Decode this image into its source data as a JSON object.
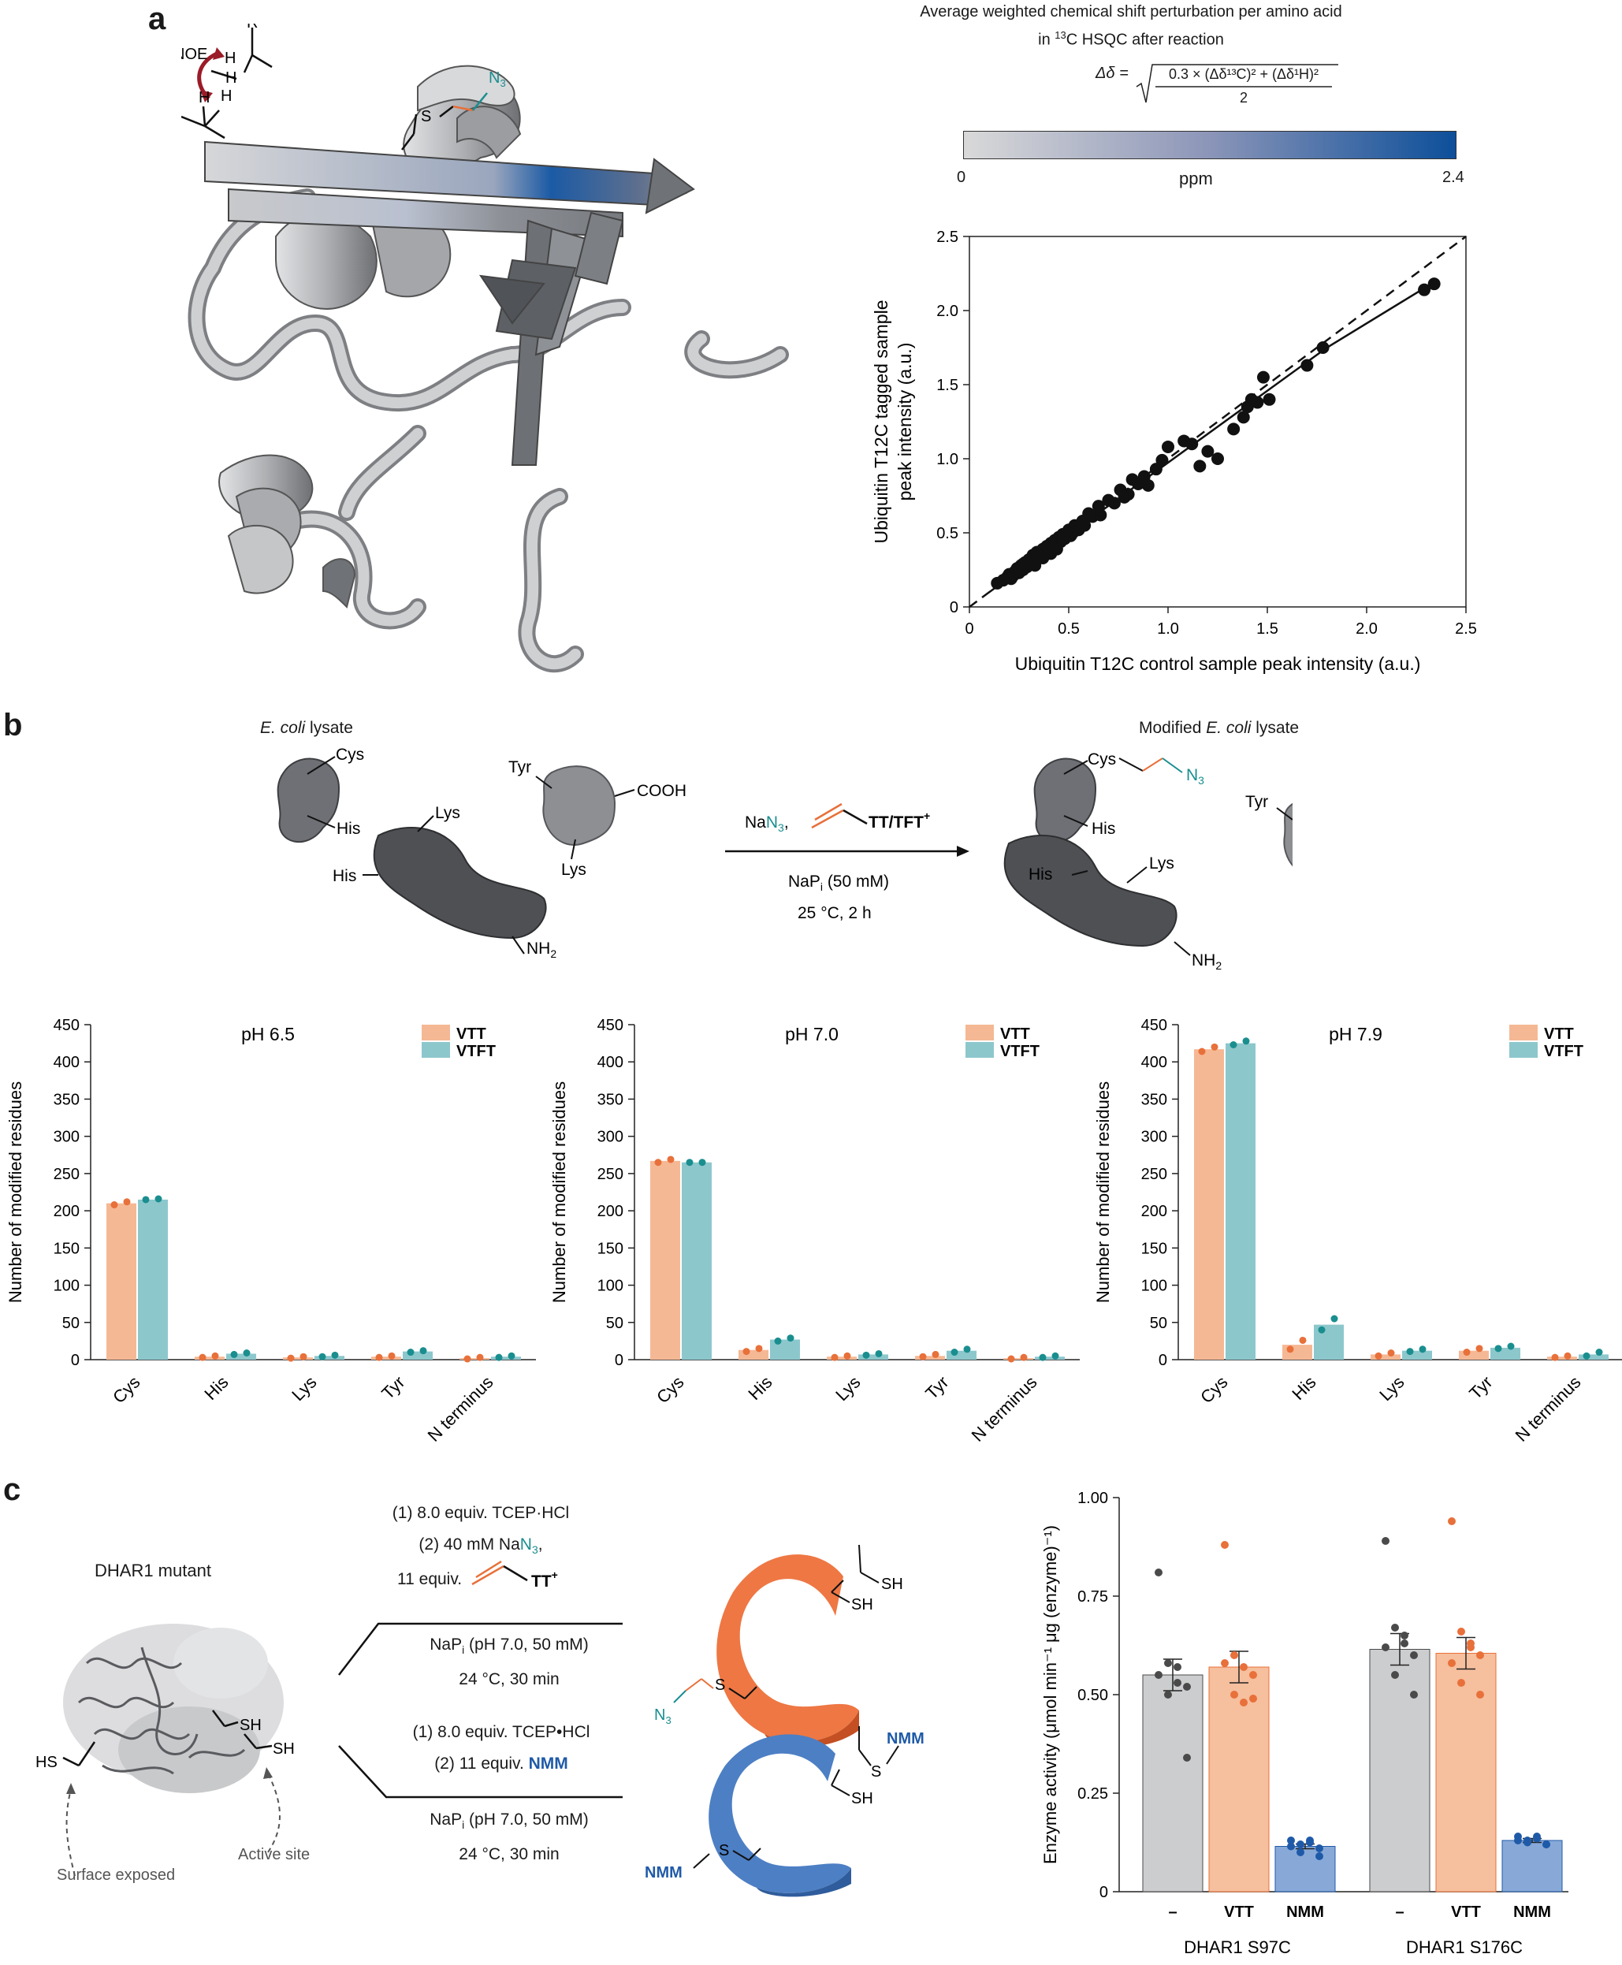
{
  "panels": {
    "a": "a",
    "b": "b",
    "c": "c"
  },
  "colors": {
    "vtt": "#f5b894",
    "vtt_dot": "#e8703a",
    "vtft": "#8cc7cc",
    "vtft_dot": "#1a8e8f",
    "ctrl_bar": "#c7c8ca",
    "ctrl_dot": "#4a4a4a",
    "nmm_bar": "#7ba0d4",
    "nmm_dot": "#1f5aa8",
    "orange_protein": "#ee7744",
    "blue_protein": "#4d7fc4",
    "scale_start": "#d9d9d9",
    "scale_end": "#0d4f9a"
  },
  "panel_a": {
    "noe_label": "NOE",
    "h_label": "H",
    "r_label": "R",
    "s_label": "S",
    "n3_label": "N",
    "n3_sub": "3",
    "colorbar": {
      "title_line1": "Average weighted chemical shift perturbation per amino acid",
      "title_line2_pre": "in ",
      "title_line2_sup": "13",
      "title_line2_post": "C HSQC after reaction",
      "formula_lhs": "Δδ =",
      "formula_numerator": "0.3 × (Δδ¹³C)² + (Δδ¹H)²",
      "formula_denominator": "2",
      "min_label": "0",
      "unit_label": "ppm",
      "max_label": "2.4"
    }
  },
  "scatter": {
    "type": "scatter",
    "xlabel": "Ubiquitin T12C control sample peak intensity (a.u.)",
    "ylabel_line1": "Ubiquitin T12C tagged sample",
    "ylabel_line2": "peak intensity (a.u.)",
    "xlim": [
      0,
      2.5
    ],
    "ylim": [
      0,
      2.5
    ],
    "xticks": [
      "0",
      "0.5",
      "1.0",
      "1.5",
      "2.0",
      "2.5"
    ],
    "yticks": [
      "0",
      "0.5",
      "1.0",
      "1.5",
      "2.0",
      "2.5"
    ],
    "points": [
      [
        0.14,
        0.16
      ],
      [
        0.17,
        0.18
      ],
      [
        0.19,
        0.2
      ],
      [
        0.2,
        0.22
      ],
      [
        0.22,
        0.21
      ],
      [
        0.23,
        0.24
      ],
      [
        0.24,
        0.26
      ],
      [
        0.25,
        0.23
      ],
      [
        0.26,
        0.28
      ],
      [
        0.27,
        0.25
      ],
      [
        0.28,
        0.3
      ],
      [
        0.29,
        0.27
      ],
      [
        0.3,
        0.32
      ],
      [
        0.31,
        0.3
      ],
      [
        0.32,
        0.35
      ],
      [
        0.33,
        0.31
      ],
      [
        0.34,
        0.37
      ],
      [
        0.35,
        0.33
      ],
      [
        0.36,
        0.36
      ],
      [
        0.37,
        0.39
      ],
      [
        0.38,
        0.35
      ],
      [
        0.39,
        0.41
      ],
      [
        0.4,
        0.38
      ],
      [
        0.41,
        0.43
      ],
      [
        0.42,
        0.4
      ],
      [
        0.43,
        0.45
      ],
      [
        0.44,
        0.42
      ],
      [
        0.45,
        0.47
      ],
      [
        0.46,
        0.44
      ],
      [
        0.47,
        0.49
      ],
      [
        0.48,
        0.46
      ],
      [
        0.5,
        0.52
      ],
      [
        0.51,
        0.48
      ],
      [
        0.53,
        0.55
      ],
      [
        0.55,
        0.52
      ],
      [
        0.57,
        0.58
      ],
      [
        0.6,
        0.63
      ],
      [
        0.62,
        0.61
      ],
      [
        0.65,
        0.68
      ],
      [
        0.7,
        0.72
      ],
      [
        0.73,
        0.7
      ],
      [
        0.76,
        0.79
      ],
      [
        0.8,
        0.76
      ],
      [
        0.82,
        0.86
      ],
      [
        0.85,
        0.83
      ],
      [
        0.88,
        0.88
      ],
      [
        0.9,
        0.82
      ],
      [
        0.94,
        0.93
      ],
      [
        0.97,
        0.99
      ],
      [
        1.0,
        1.08
      ],
      [
        1.08,
        1.12
      ],
      [
        1.12,
        1.1
      ],
      [
        1.16,
        0.95
      ],
      [
        1.2,
        1.05
      ],
      [
        1.25,
        1.0
      ],
      [
        1.33,
        1.2
      ],
      [
        1.38,
        1.28
      ],
      [
        1.4,
        1.35
      ],
      [
        1.42,
        1.4
      ],
      [
        1.45,
        1.38
      ],
      [
        1.48,
        1.55
      ],
      [
        1.51,
        1.4
      ],
      [
        1.7,
        1.63
      ],
      [
        1.78,
        1.75
      ],
      [
        2.29,
        2.14
      ],
      [
        2.34,
        2.18
      ],
      [
        0.21,
        0.19
      ],
      [
        0.27,
        0.29
      ],
      [
        0.33,
        0.28
      ],
      [
        0.37,
        0.33
      ],
      [
        0.41,
        0.36
      ],
      [
        0.44,
        0.39
      ],
      [
        0.52,
        0.5
      ],
      [
        0.58,
        0.55
      ],
      [
        0.66,
        0.62
      ],
      [
        0.78,
        0.74
      ]
    ],
    "fit_line": [
      [
        0.1,
        0.1
      ],
      [
        1.8,
        1.75
      ],
      [
        2.35,
        2.2
      ]
    ],
    "identity_line": [
      [
        0,
        0
      ],
      [
        2.5,
        2.5
      ]
    ]
  },
  "panel_b": {
    "left_title_italic": "E. coli",
    "left_title_rest": " lysate",
    "right_title_pre": "Modified ",
    "right_title_italic": "E. coli",
    "right_title_rest": " lysate",
    "labels": {
      "cys": "Cys",
      "his": "His",
      "tyr": "Tyr",
      "lys": "Lys",
      "cooh": "COOH",
      "nh": "NH",
      "nh_sub": "2",
      "n3": "N",
      "n3_sub": "3"
    },
    "reagent": {
      "na": "Na",
      "n3": "N",
      "n3_sub": "3",
      "comma": ",",
      "tt": "TT/TFT",
      "tt_sup": "+"
    },
    "cond_line1_pre": "NaP",
    "cond_line1_sub": "i",
    "cond_line1_post": " (50 mM)",
    "cond_line2": "25 °C, 2 h"
  },
  "bar_charts": {
    "type": "bar",
    "ylabel": "Number of modified residues",
    "yticks": [
      "0",
      "50",
      "100",
      "150",
      "200",
      "250",
      "300",
      "350",
      "400",
      "450"
    ],
    "ylim": [
      0,
      450
    ],
    "categories": [
      "Cys",
      "His",
      "Lys",
      "Tyr",
      "N terminus"
    ],
    "legend": [
      "VTT",
      "VTFT"
    ],
    "charts": [
      {
        "title": "pH 6.5",
        "series": [
          {
            "name": "VTT",
            "values": [
              210,
              4,
              3,
              4,
              2
            ],
            "points": [
              [
                208,
                212
              ],
              [
                3,
                5
              ],
              [
                2,
                4
              ],
              [
                3,
                5
              ],
              [
                1,
                3
              ]
            ]
          },
          {
            "name": "VTFT",
            "values": [
              215,
              8,
              5,
              11,
              4
            ],
            "points": [
              [
                215,
                216
              ],
              [
                7,
                9
              ],
              [
                4,
                6
              ],
              [
                10,
                12
              ],
              [
                3,
                5
              ]
            ]
          }
        ]
      },
      {
        "title": "pH 7.0",
        "series": [
          {
            "name": "VTT",
            "values": [
              267,
              13,
              4,
              5,
              2
            ],
            "points": [
              [
                265,
                269
              ],
              [
                11,
                15
              ],
              [
                3,
                5
              ],
              [
                4,
                7
              ],
              [
                1,
                3
              ]
            ]
          },
          {
            "name": "VTFT",
            "values": [
              265,
              27,
              7,
              12,
              4
            ],
            "points": [
              [
                265,
                265
              ],
              [
                25,
                29
              ],
              [
                6,
                8
              ],
              [
                10,
                14
              ],
              [
                3,
                5
              ]
            ]
          }
        ]
      },
      {
        "title": "pH 7.9",
        "series": [
          {
            "name": "VTT",
            "values": [
              417,
              20,
              7,
              12,
              4
            ],
            "points": [
              [
                414,
                420
              ],
              [
                14,
                26
              ],
              [
                5,
                9
              ],
              [
                10,
                15
              ],
              [
                3,
                5
              ]
            ]
          },
          {
            "name": "VTFT",
            "values": [
              425,
              47,
              12,
              16,
              7
            ],
            "points": [
              [
                423,
                428
              ],
              [
                40,
                55
              ],
              [
                11,
                14
              ],
              [
                15,
                18
              ],
              [
                5,
                10
              ]
            ]
          }
        ]
      }
    ]
  },
  "panel_c": {
    "mutant_label": "DHAR1 mutant",
    "sh": "SH",
    "hs": "HS",
    "surface_label": "Surface exposed",
    "active_label": "Active site",
    "top_cond": {
      "l1": "(1) 8.0 equiv. TCEP·HCl",
      "l2_pre": "(2) 40 mM Na",
      "l2_n3": "N",
      "l2_sub": "3",
      "l2_post": ",",
      "l3_pre": "11 equiv.",
      "l3_tt": "TT",
      "l3_sup": "+",
      "l4_pre": "NaP",
      "l4_sub": "i",
      "l4_post": " (pH 7.0, 50 mM)",
      "l5": "24 °C, 30 min"
    },
    "bottom_cond": {
      "l1": "(1) 8.0 equiv. TCEP•HCl",
      "l2_pre": "(2) 11 equiv. ",
      "l2_nmm": "NMM",
      "l3_pre": "NaP",
      "l3_sub": "i",
      "l3_post": " (pH 7.0, 50 mM)",
      "l4": "24 °C, 30 min"
    },
    "nmm": "NMM",
    "s": "S"
  },
  "enzyme_chart": {
    "type": "bar",
    "ylabel": "Enzyme activity (μmol min⁻¹ μg (enzyme)⁻¹)",
    "ylim": [
      0,
      1.0
    ],
    "yticks": [
      "0",
      "0.25",
      "0.50",
      "0.75",
      "1.00"
    ],
    "groups": [
      {
        "label": "DHAR1 S97C",
        "bars": [
          {
            "name": "–",
            "value": 0.55,
            "sem": 0.04,
            "points": [
              0.81,
              0.58,
              0.57,
              0.52,
              0.55,
              0.5,
              0.53,
              0.34
            ]
          },
          {
            "name": "VTT",
            "value": 0.57,
            "sem": 0.04,
            "points": [
              0.88,
              0.6,
              0.57,
              0.55,
              0.58,
              0.5,
              0.48,
              0.49
            ]
          },
          {
            "name": "NMM",
            "value": 0.115,
            "sem": 0.006,
            "points": [
              0.13,
              0.12,
              0.125,
              0.11,
              0.115,
              0.1,
              0.13,
              0.09
            ]
          }
        ]
      },
      {
        "label": "DHAR1 S176C",
        "bars": [
          {
            "name": "–",
            "value": 0.615,
            "sem": 0.04,
            "points": [
              0.89,
              0.67,
              0.65,
              0.6,
              0.62,
              0.55,
              0.63,
              0.5
            ]
          },
          {
            "name": "VTT",
            "value": 0.605,
            "sem": 0.04,
            "points": [
              0.94,
              0.66,
              0.63,
              0.6,
              0.58,
              0.53,
              0.62,
              0.5
            ]
          },
          {
            "name": "NMM",
            "value": 0.13,
            "sem": 0.005,
            "points": [
              0.14,
              0.13,
              0.135,
              0.12,
              0.13,
              0.125,
              0.14,
              0.12
            ]
          }
        ]
      }
    ]
  }
}
